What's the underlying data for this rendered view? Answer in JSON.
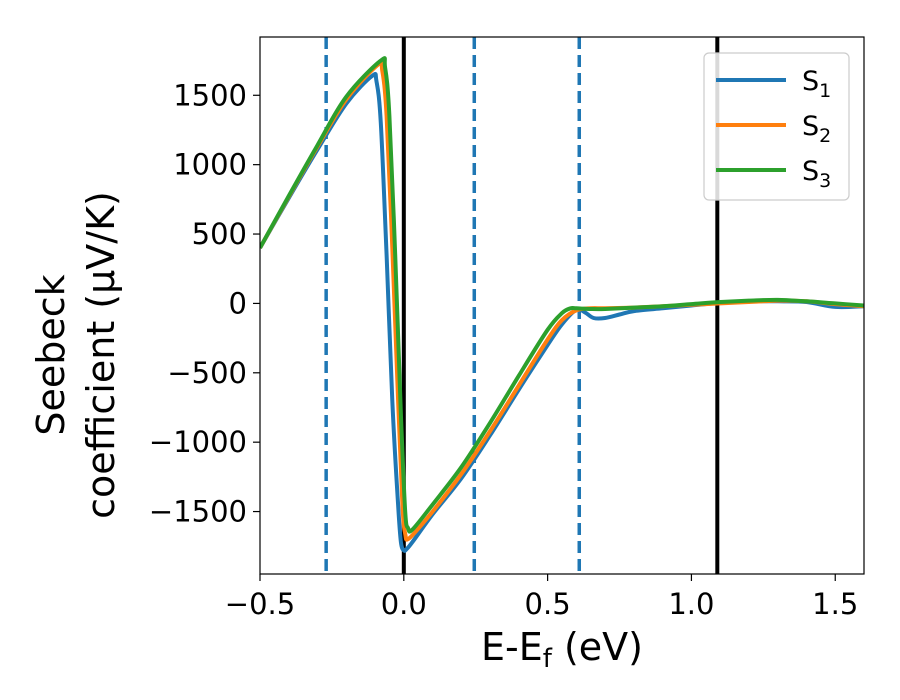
{
  "chart_data": {
    "type": "line",
    "xlabel": "E-E",
    "xlabel_sub": "f",
    "xlabel_unit": " (eV)",
    "ylabel_line1": "Seebeck",
    "ylabel_line2": "coefficient  (μV/K)",
    "xlim": [
      -0.5,
      1.6
    ],
    "ylim": [
      -1950,
      1920
    ],
    "xticks": [
      -0.5,
      0.0,
      0.5,
      1.0,
      1.5
    ],
    "xtick_labels": [
      "−0.5",
      "0.0",
      "0.5",
      "1.0",
      "1.5"
    ],
    "yticks": [
      -1500,
      -1000,
      -500,
      0,
      500,
      1000,
      1500
    ],
    "ytick_labels": [
      "−1500",
      "−1000",
      "−500",
      "0",
      "500",
      "1000",
      "1500"
    ],
    "grid": false,
    "legend_position": "top-right",
    "vlines_solid": [
      0.0,
      1.09
    ],
    "vlines_dashed": [
      -0.27,
      0.245,
      0.61
    ],
    "vline_solid_color": "#000000",
    "vline_dashed_color": "#1f77b4",
    "series": [
      {
        "name": "S",
        "sub": "1",
        "color": "#1f77b4",
        "x": [
          -0.5,
          -0.4,
          -0.3,
          -0.2,
          -0.11,
          -0.095,
          -0.08,
          -0.06,
          -0.04,
          -0.02,
          -0.01,
          0.0,
          0.01,
          0.03,
          0.1,
          0.2,
          0.3,
          0.4,
          0.5,
          0.55,
          0.6,
          0.63,
          0.66,
          0.7,
          0.75,
          0.8,
          0.9,
          1.0,
          1.1,
          1.2,
          1.3,
          1.4,
          1.5,
          1.6
        ],
        "y": [
          400,
          760,
          1110,
          1440,
          1640,
          1600,
          1300,
          350,
          -700,
          -1450,
          -1720,
          -1780,
          -1770,
          -1720,
          -1520,
          -1260,
          -950,
          -620,
          -300,
          -150,
          -45,
          -65,
          -105,
          -105,
          -80,
          -55,
          -35,
          -15,
          5,
          15,
          15,
          10,
          -25,
          -20
        ]
      },
      {
        "name": "S",
        "sub": "2",
        "color": "#ff7f0e",
        "x": [
          -0.5,
          -0.4,
          -0.3,
          -0.2,
          -0.09,
          -0.075,
          -0.06,
          -0.04,
          -0.02,
          -0.005,
          0.005,
          0.02,
          0.1,
          0.2,
          0.3,
          0.4,
          0.5,
          0.55,
          0.6,
          0.65,
          0.7,
          0.8,
          0.9,
          1.0,
          1.1,
          1.2,
          1.3,
          1.4,
          1.5,
          1.6
        ],
        "y": [
          400,
          770,
          1130,
          1470,
          1720,
          1680,
          1350,
          400,
          -700,
          -1450,
          -1660,
          -1690,
          -1500,
          -1230,
          -920,
          -590,
          -260,
          -120,
          -50,
          -35,
          -35,
          -30,
          -20,
          -10,
          0,
          10,
          20,
          15,
          -5,
          -20
        ]
      },
      {
        "name": "S",
        "sub": "3",
        "color": "#2ca02c",
        "x": [
          -0.5,
          -0.4,
          -0.3,
          -0.2,
          -0.08,
          -0.065,
          -0.05,
          -0.03,
          -0.01,
          0.005,
          0.015,
          0.03,
          0.1,
          0.2,
          0.3,
          0.4,
          0.5,
          0.55,
          0.58,
          0.6,
          0.65,
          0.7,
          0.8,
          0.9,
          1.0,
          1.1,
          1.2,
          1.3,
          1.4,
          1.5,
          1.6
        ],
        "y": [
          400,
          775,
          1140,
          1490,
          1750,
          1700,
          1350,
          350,
          -800,
          -1500,
          -1620,
          -1630,
          -1450,
          -1180,
          -860,
          -520,
          -190,
          -70,
          -35,
          -35,
          -40,
          -40,
          -30,
          -20,
          -5,
          10,
          20,
          25,
          15,
          0,
          -15
        ]
      }
    ]
  }
}
